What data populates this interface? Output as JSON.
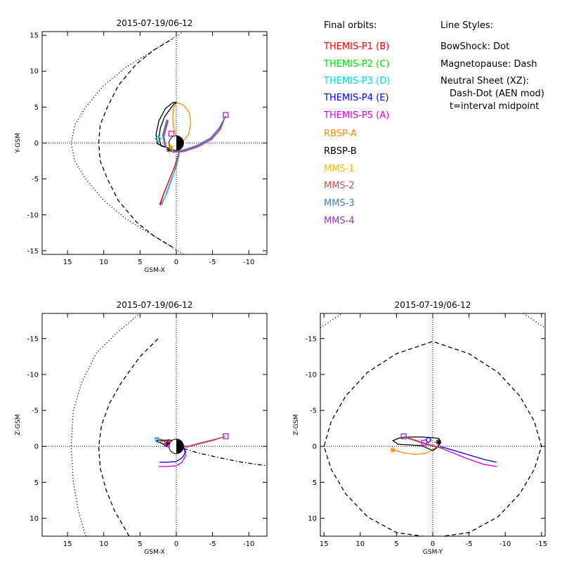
{
  "legend": {
    "heading": "Final orbits:",
    "items": [
      {
        "label": "THEMIS-P1 (B)",
        "color": "#ff0000"
      },
      {
        "label": "THEMIS-P2 (C)",
        "color": "#00e000"
      },
      {
        "label": "THEMIS-P3 (D)",
        "color": "#00d8d8"
      },
      {
        "label": "THEMIS-P4 (E)",
        "color": "#0000ff"
      },
      {
        "label": "THEMIS-P5 (A)",
        "color": "#e000e0"
      },
      {
        "label": "RBSP-A",
        "color": "#ff8c00"
      },
      {
        "label": "RBSP-B",
        "color": "#000000"
      },
      {
        "label": "MMS-1",
        "color": "#ffbb00"
      },
      {
        "label": "MMS-2",
        "color": "#d05050"
      },
      {
        "label": "MMS-3",
        "color": "#4682b4"
      },
      {
        "label": "MMS-4",
        "color": "#9933cc"
      }
    ]
  },
  "styles": {
    "heading": "Line Styles:",
    "lines": [
      "BowShock: Dot",
      "Magnetopause: Dash",
      "Neutral Sheet (XZ):",
      "Dash-Dot (AEN mod)",
      "t=interval midpoint"
    ]
  },
  "chart_data": [
    {
      "type": "line",
      "title": "2015-07-19/06-12",
      "xlabel": "GSM-X",
      "ylabel": "Y-GSM",
      "xlim": [
        18.5,
        -12.5
      ],
      "ylim": [
        15.5,
        -15.5
      ],
      "xticks": [
        15,
        10,
        5,
        0,
        -5,
        -10
      ],
      "xticklabels": [
        "15",
        "10",
        "5",
        "0",
        "-5",
        "-10"
      ],
      "yticks": [
        -15,
        -10,
        -5,
        0,
        5,
        10,
        15
      ],
      "yticklabels": [
        "-15",
        "-10",
        "-5",
        "0",
        "5",
        "10",
        "15"
      ],
      "series": [
        {
          "key": "bow",
          "style": "dot",
          "color": "#000000",
          "x": [
            -1,
            3,
            7,
            10,
            12.5,
            14,
            14.5,
            14,
            12.5,
            10,
            7,
            3,
            -1
          ],
          "y": [
            -15.5,
            -13,
            -10.5,
            -8,
            -5,
            -2.5,
            0,
            2.5,
            5,
            8,
            10.5,
            13,
            15.5
          ]
        },
        {
          "key": "mp",
          "style": "dash",
          "color": "#000000",
          "x": [
            0.5,
            3,
            5.5,
            8,
            9.5,
            10.5,
            10.7,
            10.5,
            9.5,
            8,
            5.5,
            3,
            0.5
          ],
          "y": [
            -14.5,
            -13,
            -11,
            -8,
            -5,
            -2.5,
            0,
            2.5,
            5,
            8,
            11,
            13,
            14.5
          ]
        },
        {
          "key": "p5",
          "style": "solid",
          "color": "#e000e0",
          "x": [
            2.2,
            1.8,
            1,
            0.2,
            -0.3,
            -0.5,
            -0.4
          ],
          "y": [
            -8.7,
            -7.2,
            -5.2,
            -3.2,
            -1.5,
            -0.2,
            0.8
          ]
        },
        {
          "key": "p1",
          "style": "solid",
          "color": "#ff0000",
          "x": [
            2.3,
            1.8,
            1,
            0.2,
            -0.3,
            -0.5,
            -0.4
          ],
          "y": [
            -8.6,
            -7.2,
            -5.2,
            -3.2,
            -1.5,
            -0.2,
            0.8
          ]
        },
        {
          "key": "p4",
          "style": "solid",
          "color": "#0000ff",
          "x": [
            2,
            1.4,
            0.7,
            0,
            -0.4,
            -0.6,
            -0.5
          ],
          "y": [
            -8.5,
            -7.2,
            -5.2,
            -3.2,
            -1.5,
            -0.2,
            0.8
          ]
        },
        {
          "key": "p3",
          "style": "solid",
          "color": "#00d8d8",
          "x": [
            1.9,
            1.3,
            0.6,
            0,
            -0.4,
            -0.6,
            -0.5
          ],
          "y": [
            -8.3,
            -7,
            -5,
            -3,
            -1.4,
            -0.2,
            0.8
          ]
        },
        {
          "key": "mms4",
          "style": "solid",
          "color": "#9933cc",
          "x": [
            1.2,
            1.8,
            1.5,
            0.5,
            -1,
            -3,
            -4.8,
            -6,
            -6.8
          ],
          "y": [
            3.2,
            1,
            -0.5,
            -1.2,
            -1.1,
            -0.4,
            0.6,
            2,
            3.8
          ]
        },
        {
          "key": "mms2",
          "style": "solid",
          "color": "#d05050",
          "x": [
            1.1,
            1.7,
            1.4,
            0.4,
            -1.1,
            -3.1,
            -4.9,
            -6.1,
            -6.8
          ],
          "y": [
            3.1,
            0.9,
            -0.6,
            -1.3,
            -1.2,
            -0.5,
            0.5,
            1.9,
            3.8
          ]
        },
        {
          "key": "mms3",
          "style": "solid",
          "color": "#4682b4",
          "x": [
            1.3,
            1.9,
            1.6,
            0.6,
            -0.9,
            -2.9,
            -4.7,
            -5.9,
            -6.8
          ],
          "y": [
            3.3,
            1.1,
            -0.4,
            -1.1,
            -1,
            -0.3,
            0.7,
            2.1,
            3.8
          ]
        },
        {
          "key": "rbspa",
          "style": "solid",
          "color": "#ff8c00",
          "x": [
            0.3,
            -0.8,
            -1.7,
            -2,
            -1.8,
            -1,
            0,
            0.4,
            0.5,
            0.4,
            0.2,
            0,
            -0.5,
            -0.2,
            0.3
          ],
          "y": [
            -0.6,
            0,
            1.2,
            2.8,
            4.2,
            5.3,
            5.6,
            4.8,
            3.5,
            2.4,
            1.5,
            0.8,
            0.2,
            -0.3,
            -0.6
          ]
        },
        {
          "key": "rbspb",
          "style": "solid",
          "color": "#000000",
          "x": [
            1.5,
            2.6,
            2.8,
            2.4,
            1.5,
            0.5,
            0,
            0.5,
            1.6,
            2.2,
            2.4,
            2.1,
            1.5
          ],
          "y": [
            -0.6,
            -0.1,
            1.2,
            3.1,
            4.8,
            5.6,
            5.7,
            5.2,
            3.7,
            2.1,
            0.7,
            -0.4,
            -0.6
          ]
        }
      ],
      "markers": [
        {
          "x": 1,
          "y": -0.9,
          "symbol": "asterisk",
          "color": "#000000"
        },
        {
          "x": 0.8,
          "y": -0.6,
          "symbol": "asterisk",
          "color": "#ff8c00"
        },
        {
          "x": 2.5,
          "y": 0.6,
          "symbol": "diamond",
          "color": "#0000ff"
        },
        {
          "x": 2.5,
          "y": 0.6,
          "symbol": "diamond",
          "color": "#00d8d8"
        },
        {
          "x": 0.7,
          "y": 1.3,
          "symbol": "square",
          "color": "#e000e0"
        },
        {
          "x": -6.8,
          "y": 3.9,
          "symbol": "square",
          "color": "#d05050"
        },
        {
          "x": -6.8,
          "y": 3.9,
          "symbol": "square",
          "color": "#9933cc"
        }
      ],
      "earth": true
    },
    {
      "type": "line",
      "title": "2015-07-19/06-12",
      "xlabel": "GSM-X",
      "ylabel": "Z-GSM",
      "xlim": [
        18.5,
        -12.5
      ],
      "ylim": [
        -18.5,
        12.5
      ],
      "xticks": [
        15,
        10,
        5,
        0,
        -5,
        -10
      ],
      "xticklabels": [
        "15",
        "10",
        "5",
        "0",
        "-5",
        "-10"
      ],
      "yticks": [
        10,
        5,
        0,
        -5,
        -10,
        -15
      ],
      "yticklabels": [
        "10",
        "5",
        "0",
        "-5",
        "-10",
        "-15"
      ],
      "series": [
        {
          "key": "bow",
          "style": "dot",
          "color": "#000000",
          "x": [
            12.5,
            13.5,
            14.2,
            14.5,
            14.2,
            13,
            11,
            8,
            5
          ],
          "y": [
            12.5,
            9,
            5,
            0,
            -5,
            -9,
            -13,
            -16,
            -18.5
          ]
        },
        {
          "key": "mp",
          "style": "dash",
          "color": "#000000",
          "x": [
            6.5,
            8.5,
            9.7,
            10.5,
            10.7,
            10.3,
            9.2,
            7.5,
            5,
            2.5
          ],
          "y": [
            12.5,
            9,
            6,
            3,
            0,
            -3,
            -6,
            -9,
            -12.5,
            -15
          ]
        },
        {
          "key": "ns",
          "style": "dashdot",
          "color": "#000000",
          "x": [
            -1,
            -3,
            -6,
            -9,
            -12.5
          ],
          "y": [
            0.3,
            0.9,
            1.6,
            2.2,
            2.7
          ]
        },
        {
          "key": "p5",
          "style": "solid",
          "color": "#e000e0",
          "x": [
            2.4,
            1.2,
            0,
            -0.8,
            -1.3,
            -1
          ],
          "y": [
            2.8,
            2.8,
            2.7,
            2.2,
            1.3,
            0.2
          ]
        },
        {
          "key": "p4",
          "style": "solid",
          "color": "#0000ff",
          "x": [
            2.3,
            1.2,
            0,
            -0.8,
            -1.3,
            -1
          ],
          "y": [
            2.2,
            2.2,
            2.1,
            1.6,
            0.8,
            0
          ]
        },
        {
          "key": "mms4",
          "style": "solid",
          "color": "#9933cc",
          "x": [
            3,
            1.5,
            0,
            -1.5,
            -3,
            -5,
            -6.8
          ],
          "y": [
            -1.2,
            -0.8,
            -0.2,
            0,
            -0.4,
            -0.9,
            -1.4
          ]
        },
        {
          "key": "mms2",
          "style": "solid",
          "color": "#d05050",
          "x": [
            2.9,
            1.4,
            0,
            -1.5,
            -3,
            -5,
            -6.8
          ],
          "y": [
            -1.1,
            -0.7,
            -0.1,
            0.1,
            -0.3,
            -0.8,
            -1.4
          ]
        },
        {
          "key": "rbspa",
          "style": "solid",
          "color": "#ff8c00",
          "x": [
            2.5,
            1.5,
            0.5,
            -0.4,
            0,
            1.2,
            2.2
          ],
          "y": [
            -0.6,
            -0.2,
            0.4,
            0.1,
            -0.6,
            -0.8,
            -0.6
          ]
        },
        {
          "key": "rbspb",
          "style": "solid",
          "color": "#000000",
          "x": [
            2.8,
            1.8,
            0.6,
            -0.6,
            -0.2,
            1,
            2.2,
            2.8
          ],
          "y": [
            -0.8,
            -0.3,
            0.3,
            0.1,
            -0.7,
            -0.9,
            -0.8,
            -0.8
          ]
        }
      ],
      "markers": [
        {
          "x": 2.6,
          "y": -0.9,
          "symbol": "diamond",
          "color": "#00d8d8"
        },
        {
          "x": 1.2,
          "y": -0.4,
          "symbol": "asterisk",
          "color": "#000000"
        },
        {
          "x": 1.3,
          "y": -0.3,
          "symbol": "square",
          "color": "#e000e0"
        },
        {
          "x": -6.8,
          "y": -1.4,
          "symbol": "square",
          "color": "#d05050"
        },
        {
          "x": -6.8,
          "y": -1.4,
          "symbol": "square",
          "color": "#9933cc"
        }
      ],
      "earth": true
    },
    {
      "type": "line",
      "title": "2015-07-19/06-12",
      "xlabel": "GSM-Y",
      "ylabel": "Z-GSM",
      "xlim": [
        15.5,
        -15.5
      ],
      "ylim": [
        -18.5,
        12.5
      ],
      "xticks": [
        15,
        10,
        5,
        0,
        -5,
        -10,
        -15
      ],
      "xticklabels": [
        "15",
        "10",
        "5",
        "0",
        "-5",
        "-10",
        "-15"
      ],
      "yticks": [
        10,
        5,
        0,
        -5,
        -10,
        -15
      ],
      "yticklabels": [
        "10",
        "5",
        "0",
        "-5",
        "-10",
        "-15"
      ],
      "series": [
        {
          "key": "bow",
          "style": "dot",
          "color": "#000000",
          "x": [
            15.5,
            14,
            12.5
          ],
          "y": [
            -16.5,
            -17.5,
            -18.5
          ]
        },
        {
          "key": "bow2",
          "style": "dot",
          "color": "#000000",
          "x": [
            -12.5,
            -14,
            -15.5
          ],
          "y": [
            -18.5,
            -17.5,
            -16.5
          ]
        },
        {
          "key": "mp",
          "style": "dash",
          "color": "#000000",
          "x": [
            0,
            5,
            9,
            12,
            14,
            15,
            14,
            12,
            9,
            5,
            0,
            -5,
            -9,
            -12,
            -14,
            -15,
            -14,
            -12,
            -9,
            -5,
            0
          ],
          "y": [
            12.7,
            12,
            9.8,
            6.6,
            3.2,
            0,
            -3.5,
            -7,
            -10.3,
            -12.9,
            -14.6,
            -12.9,
            -10.3,
            -7,
            -3.5,
            0,
            3.2,
            6.6,
            9.8,
            12,
            12.7
          ]
        },
        {
          "key": "p5",
          "style": "solid",
          "color": "#e000e0",
          "x": [
            -1,
            -3,
            -5,
            -7,
            -8.8
          ],
          "y": [
            0.2,
            1,
            1.8,
            2.5,
            2.8
          ]
        },
        {
          "key": "p4",
          "style": "solid",
          "color": "#0000ff",
          "x": [
            -1,
            -3,
            -5,
            -7,
            -8.8
          ],
          "y": [
            0,
            0.6,
            1.2,
            1.8,
            2.2
          ]
        },
        {
          "key": "rbspa",
          "style": "solid",
          "color": "#ff8c00",
          "x": [
            5.5,
            4,
            2.5,
            1,
            0,
            -0.8,
            -1,
            -0.2
          ],
          "y": [
            0.5,
            0.9,
            1.1,
            1,
            0.5,
            -0.2,
            -0.5,
            -0.6
          ]
        },
        {
          "key": "rbspb",
          "style": "solid",
          "color": "#000000",
          "x": [
            0,
            -0.7,
            -1.1,
            -0.8,
            0,
            1.5,
            3,
            4.5,
            5.5,
            4.8,
            3.2,
            1.5,
            0
          ],
          "y": [
            0.6,
            0.1,
            -0.6,
            -1.1,
            -1.2,
            -1.3,
            -1.3,
            -1.2,
            -0.8,
            -0.3,
            -0.2,
            -0.1,
            0.6
          ]
        },
        {
          "key": "mms4",
          "style": "solid",
          "color": "#9933cc",
          "x": [
            4,
            2.5,
            1,
            -0.5,
            -1.5
          ],
          "y": [
            -1.4,
            -0.9,
            -0.4,
            0,
            0.2
          ]
        },
        {
          "key": "mms2",
          "style": "solid",
          "color": "#d05050",
          "x": [
            4,
            2.5,
            1,
            -0.5,
            -1.5
          ],
          "y": [
            -1.3,
            -0.8,
            -0.3,
            0.1,
            0.3
          ]
        }
      ],
      "markers": [
        {
          "x": -0.8,
          "y": -0.6,
          "symbol": "asterisk",
          "color": "#000000"
        },
        {
          "x": 0.6,
          "y": -0.9,
          "symbol": "diamond",
          "color": "#0000ff"
        },
        {
          "x": 1.2,
          "y": -0.5,
          "symbol": "square",
          "color": "#e000e0"
        },
        {
          "x": 4,
          "y": -1.4,
          "symbol": "square",
          "color": "#d05050"
        },
        {
          "x": 4,
          "y": -1.4,
          "symbol": "square",
          "color": "#9933cc"
        },
        {
          "x": 5.5,
          "y": 0.5,
          "symbol": "asterisk",
          "color": "#ff8c00"
        }
      ],
      "earth": false
    }
  ]
}
